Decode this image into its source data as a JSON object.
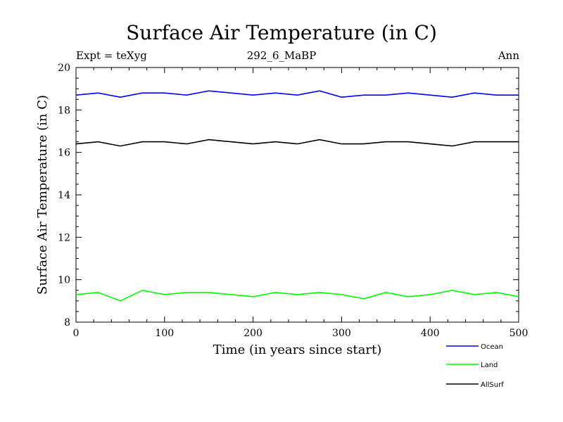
{
  "header": {
    "title": "Surface Air Temperature (in C)",
    "expt": "Expt = teXyg",
    "run": "292_6_MaBP",
    "period": "Ann"
  },
  "chart_data": {
    "type": "line",
    "title": "Surface Air Temperature (in C)",
    "xlabel": "Time (in years since start)",
    "ylabel": "Surface Air Temperature (in C)",
    "xlim": [
      0,
      500
    ],
    "ylim": [
      8,
      20
    ],
    "xticks": [
      0,
      100,
      200,
      300,
      400,
      500
    ],
    "yticks": [
      8,
      10,
      12,
      14,
      16,
      18,
      20
    ],
    "legend_position": "bottom-right, below plot",
    "series": [
      {
        "name": "Ocean",
        "color": "#0000ff",
        "x": [
          0,
          25,
          50,
          75,
          100,
          125,
          150,
          175,
          200,
          225,
          250,
          275,
          300,
          325,
          350,
          375,
          400,
          425,
          450,
          475,
          500
        ],
        "values": [
          18.7,
          18.8,
          18.6,
          18.8,
          18.8,
          18.7,
          18.9,
          18.8,
          18.7,
          18.8,
          18.7,
          18.9,
          18.6,
          18.7,
          18.7,
          18.8,
          18.7,
          18.6,
          18.8,
          18.7,
          18.7
        ]
      },
      {
        "name": "Land",
        "color": "#00ff00",
        "x": [
          0,
          25,
          50,
          75,
          100,
          125,
          150,
          175,
          200,
          225,
          250,
          275,
          300,
          325,
          350,
          375,
          400,
          425,
          450,
          475,
          500
        ],
        "values": [
          9.3,
          9.4,
          9.0,
          9.5,
          9.3,
          9.4,
          9.4,
          9.3,
          9.2,
          9.4,
          9.3,
          9.4,
          9.3,
          9.1,
          9.4,
          9.2,
          9.3,
          9.5,
          9.3,
          9.4,
          9.2
        ]
      },
      {
        "name": "AllSurf",
        "color": "#000000",
        "x": [
          0,
          25,
          50,
          75,
          100,
          125,
          150,
          175,
          200,
          225,
          250,
          275,
          300,
          325,
          350,
          375,
          400,
          425,
          450,
          475,
          500
        ],
        "values": [
          16.4,
          16.5,
          16.3,
          16.5,
          16.5,
          16.4,
          16.6,
          16.5,
          16.4,
          16.5,
          16.4,
          16.6,
          16.4,
          16.4,
          16.5,
          16.5,
          16.4,
          16.3,
          16.5,
          16.5,
          16.5
        ]
      }
    ]
  }
}
